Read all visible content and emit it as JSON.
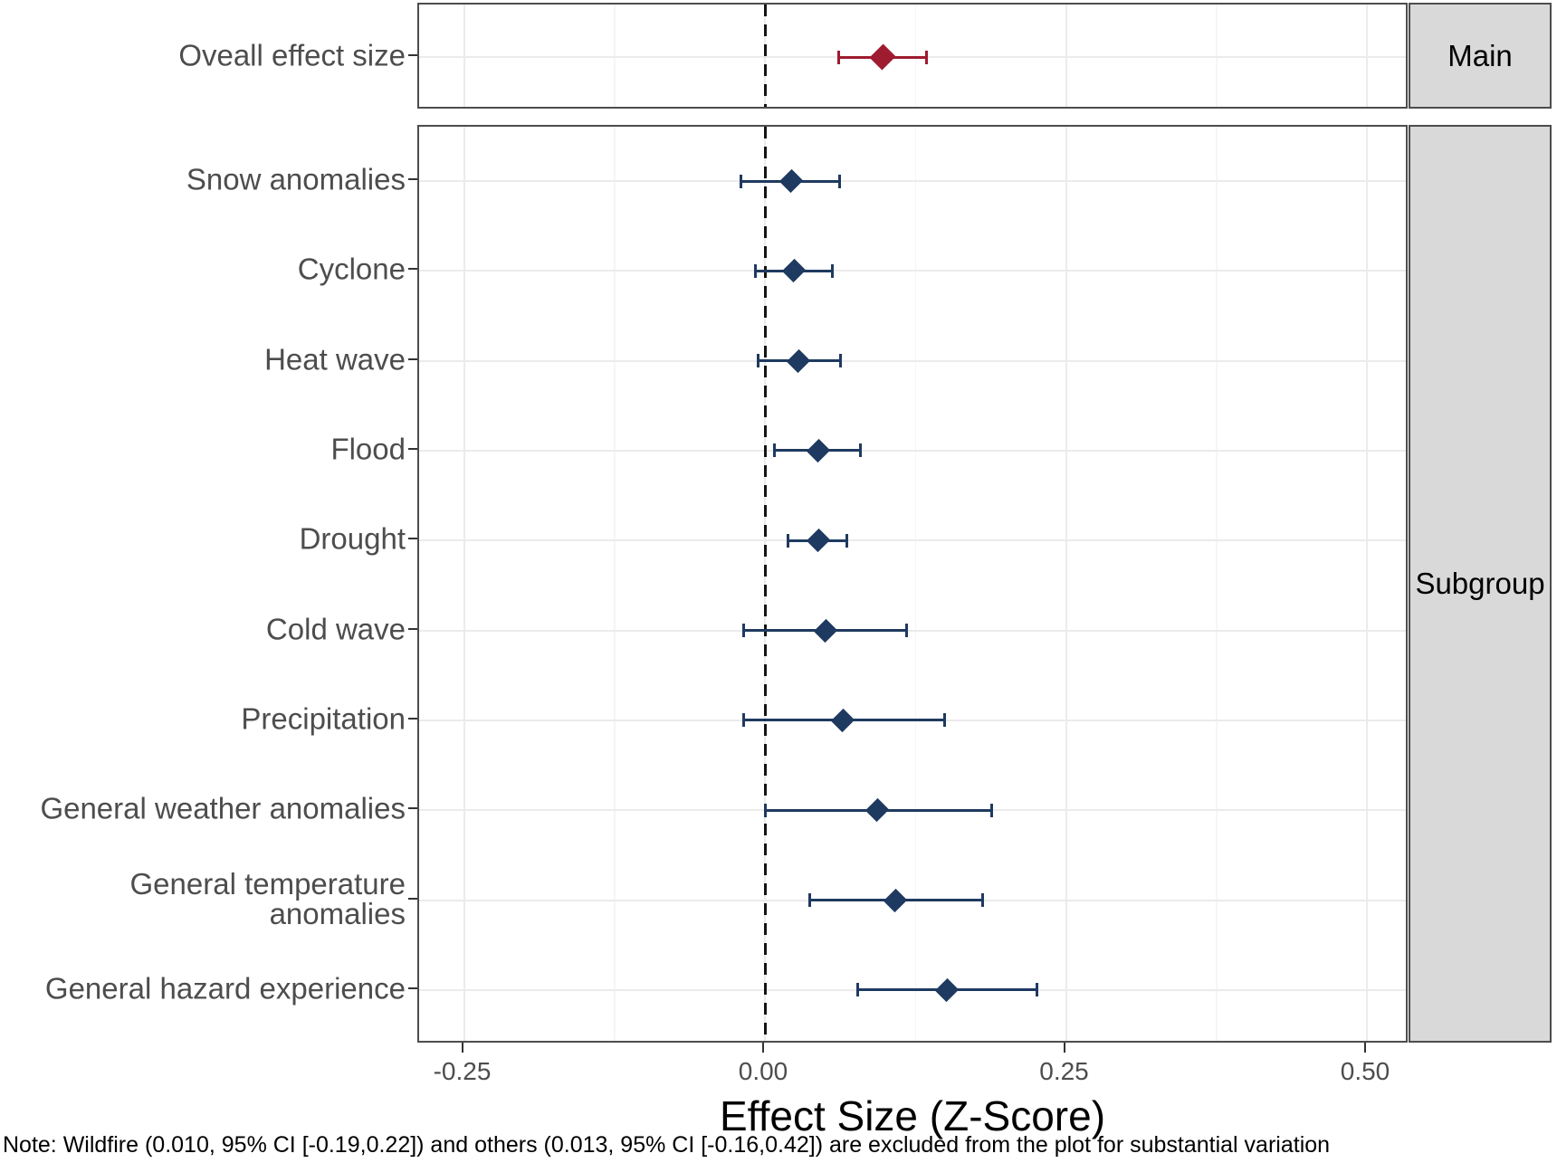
{
  "chart_data": {
    "type": "forest",
    "xlabel": "Effect Size (Z-Score)",
    "xlim": [
      -0.2865,
      0.5346
    ],
    "x_ticks": [
      -0.25,
      0.0,
      0.25,
      0.5
    ],
    "x_tick_labels": [
      "-0.25",
      "0.00",
      "0.25",
      "0.50"
    ],
    "x_minor_ticks": [
      -0.125,
      0.125,
      0.375
    ],
    "zero_reference_line": 0.0,
    "grid": "on",
    "panels": [
      {
        "strip_label": "Main",
        "series_color": "#9e1b30",
        "rows": [
          {
            "label": "Oveall effect size",
            "value": 0.098,
            "ci_low": 0.061,
            "ci_high": 0.134
          }
        ]
      },
      {
        "strip_label": "Subgroup",
        "series_color": "#1f3a60",
        "rows": [
          {
            "label": "Snow anomalies",
            "value": 0.022,
            "ci_low": -0.02,
            "ci_high": 0.062
          },
          {
            "label": "Cyclone",
            "value": 0.024,
            "ci_low": -0.008,
            "ci_high": 0.056
          },
          {
            "label": "Heat wave",
            "value": 0.028,
            "ci_low": -0.006,
            "ci_high": 0.063
          },
          {
            "label": "Flood",
            "value": 0.044,
            "ci_low": 0.008,
            "ci_high": 0.079
          },
          {
            "label": "Drought",
            "value": 0.044,
            "ci_low": 0.019,
            "ci_high": 0.068
          },
          {
            "label": "Cold wave",
            "value": 0.05,
            "ci_low": -0.018,
            "ci_high": 0.118
          },
          {
            "label": "Precipitation",
            "value": 0.065,
            "ci_low": -0.018,
            "ci_high": 0.149
          },
          {
            "label": "General weather anomalies",
            "value": 0.093,
            "ci_low": 0.0,
            "ci_high": 0.188
          },
          {
            "label": "General temperature anomalies",
            "value": 0.108,
            "ci_low": 0.037,
            "ci_high": 0.181
          },
          {
            "label": "General hazard experience",
            "value": 0.151,
            "ci_low": 0.077,
            "ci_high": 0.226
          }
        ]
      }
    ],
    "note": "Note: Wildfire (0.010, 95% CI [-0.19,0.22]) and others (0.013, 95% CI [-0.16,0.42]) are excluded from the plot for substantial variation"
  },
  "colors": {
    "main_marker": "#9e1b30",
    "subgroup_marker": "#1f3a60",
    "grid_major": "#ebebeb",
    "grid_minor": "#f5f5f5",
    "strip_bg": "#d9d9d9",
    "panel_border": "#4d4d4d",
    "axis_text": "#4d4d4d",
    "zero_line": "#141414"
  }
}
